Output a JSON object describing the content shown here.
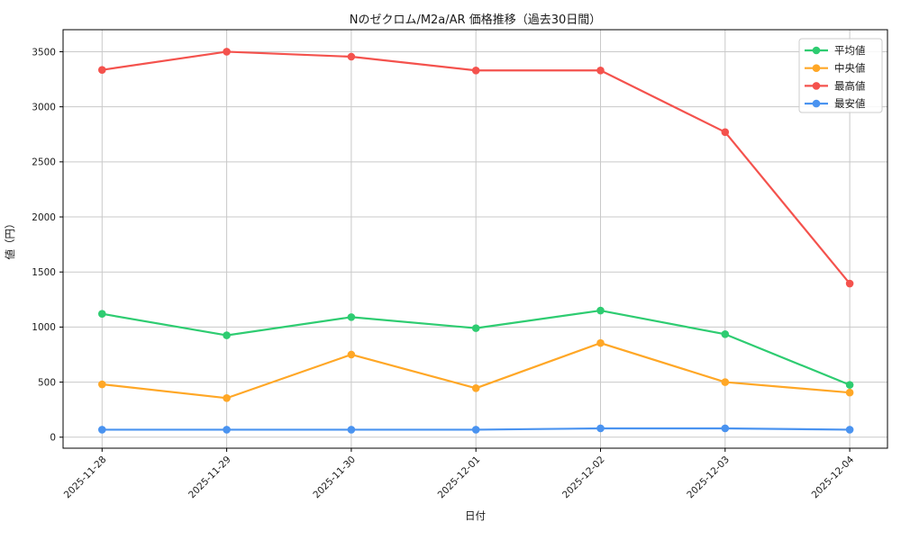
{
  "chart_data": {
    "type": "line",
    "title": "Nのゼクロム/M2a/AR 価格推移（過去30日間）",
    "xlabel": "日付",
    "ylabel": "値（円）",
    "categories": [
      "2025-11-28",
      "2025-11-29",
      "2025-11-30",
      "2025-12-01",
      "2025-12-02",
      "2025-12-03",
      "2025-12-04"
    ],
    "series": [
      {
        "name": "平均値",
        "key": "average",
        "color": "#2ecc71",
        "values": [
          1120,
          925,
          1090,
          990,
          1150,
          935,
          475
        ]
      },
      {
        "name": "中央値",
        "key": "median",
        "color": "#ffa726",
        "values": [
          480,
          355,
          750,
          445,
          855,
          500,
          405
        ]
      },
      {
        "name": "最高値",
        "key": "highest",
        "color": "#f4524d",
        "values": [
          3335,
          3500,
          3455,
          3330,
          3330,
          2770,
          1395
        ]
      },
      {
        "name": "最安値",
        "key": "lowest",
        "color": "#4a93f0",
        "values": [
          68,
          68,
          68,
          68,
          80,
          80,
          68
        ]
      }
    ],
    "yticks": [
      0,
      500,
      1000,
      1500,
      2000,
      2500,
      3000,
      3500
    ],
    "ylim": [
      -100,
      3700
    ],
    "grid": true,
    "legend_position": "upper-right",
    "legend_labels": [
      "平均値",
      "中央値",
      "最高値",
      "最安値"
    ]
  }
}
